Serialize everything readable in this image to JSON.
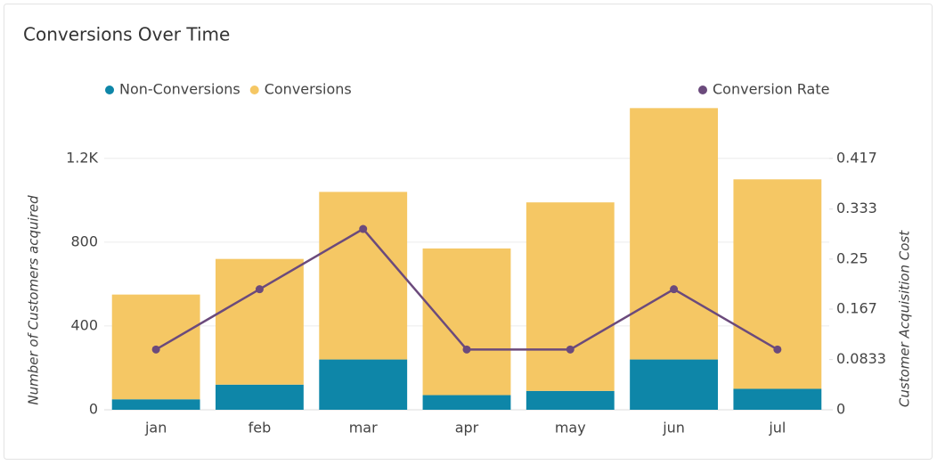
{
  "chart_data": {
    "type": "bar",
    "stacked": true,
    "title": "Conversions Over Time",
    "categories": [
      "jan",
      "feb",
      "mar",
      "apr",
      "may",
      "jun",
      "jul"
    ],
    "series": [
      {
        "name": "Non-Conversions",
        "color": "#0e86a8",
        "values": [
          50,
          120,
          240,
          70,
          90,
          240,
          100
        ]
      },
      {
        "name": "Conversions",
        "color": "#f5c764",
        "values": [
          500,
          600,
          800,
          700,
          900,
          1200,
          1000
        ]
      },
      {
        "name": "Conversion Rate",
        "color": "#6b4a7c",
        "type": "line",
        "axis": "y2",
        "values": [
          0.1,
          0.2,
          0.3,
          0.1,
          0.1,
          0.2,
          0.1
        ]
      }
    ],
    "ylabel": "Number of Customers acquired",
    "y2label": "Customer Acquisition Cost",
    "ylim": [
      0,
      1450
    ],
    "yticks": [
      0,
      400,
      800,
      {
        "value": 1200,
        "label": "1.2K"
      }
    ],
    "y2lim": [
      0,
      0.504
    ],
    "y2ticks": [
      0,
      0.0833,
      0.167,
      0.25,
      0.333,
      0.417
    ],
    "grid": true
  }
}
